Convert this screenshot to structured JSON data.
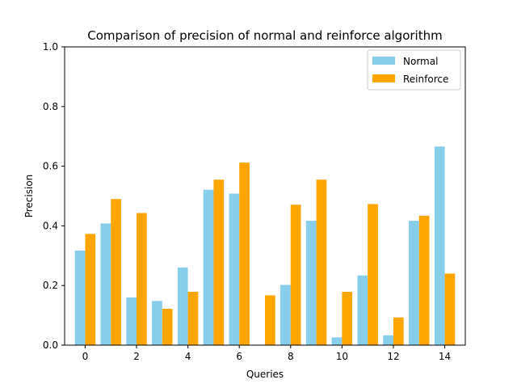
{
  "chart_data": {
    "type": "bar",
    "title": "Comparison of precision of normal and reinforce algorithm",
    "xlabel": "Queries",
    "ylabel": "Precision",
    "ylim": [
      0,
      1.0
    ],
    "xlim": [
      -0.8,
      14.8
    ],
    "categories": [
      0,
      1,
      2,
      3,
      4,
      5,
      6,
      7,
      8,
      9,
      10,
      11,
      12,
      13,
      14
    ],
    "x_ticks": [
      "0",
      "2",
      "4",
      "6",
      "8",
      "10",
      "12",
      "14"
    ],
    "y_ticks": [
      "0.0",
      "0.2",
      "0.4",
      "0.6",
      "0.8",
      "1.0"
    ],
    "grid": false,
    "legend_position": "top-right",
    "series": [
      {
        "name": "Normal",
        "color": "#87ceeb",
        "values": [
          0.317,
          0.408,
          0.16,
          0.148,
          0.26,
          0.521,
          0.508,
          0.0,
          0.202,
          0.417,
          0.026,
          0.234,
          0.033,
          0.417,
          0.666
        ]
      },
      {
        "name": "Reinforce",
        "color": "#ffa500",
        "values": [
          0.373,
          0.49,
          0.443,
          0.122,
          0.179,
          0.555,
          0.612,
          0.167,
          0.471,
          0.555,
          0.179,
          0.473,
          0.093,
          0.434,
          0.24
        ]
      }
    ]
  }
}
